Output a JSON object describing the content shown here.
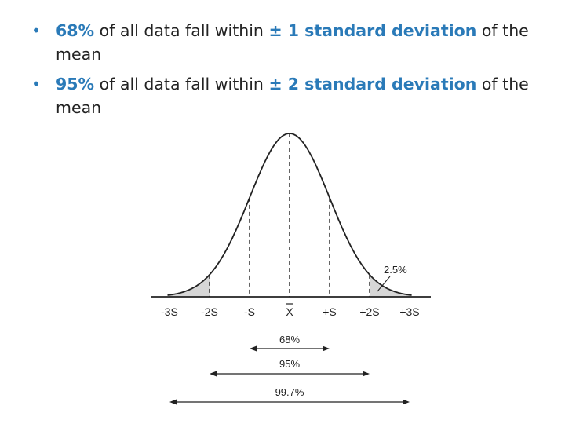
{
  "bullets": [
    {
      "dot": "•",
      "pct": "68%",
      "text1": "of all data fall within",
      "range": "± 1 standard deviation",
      "text2": "of the mean"
    },
    {
      "dot": "•",
      "pct": "95%",
      "text1": "of all data fall within",
      "range": "± 2 standard deviation",
      "text2": "of the mean"
    }
  ],
  "diagram": {
    "axis_labels": [
      "-3S",
      "-2S",
      "-S",
      "X",
      "+S",
      "+2S",
      "+3S"
    ],
    "tail_label": "2.5%",
    "ranges": [
      {
        "label": "68%",
        "sd": 1
      },
      {
        "label": "95%",
        "sd": 2
      },
      {
        "label": "99.7%",
        "sd": 3
      }
    ],
    "colors": {
      "accent": "#2a7ab8",
      "tail_shade": "#d6d6d6",
      "ink": "#222222"
    }
  }
}
